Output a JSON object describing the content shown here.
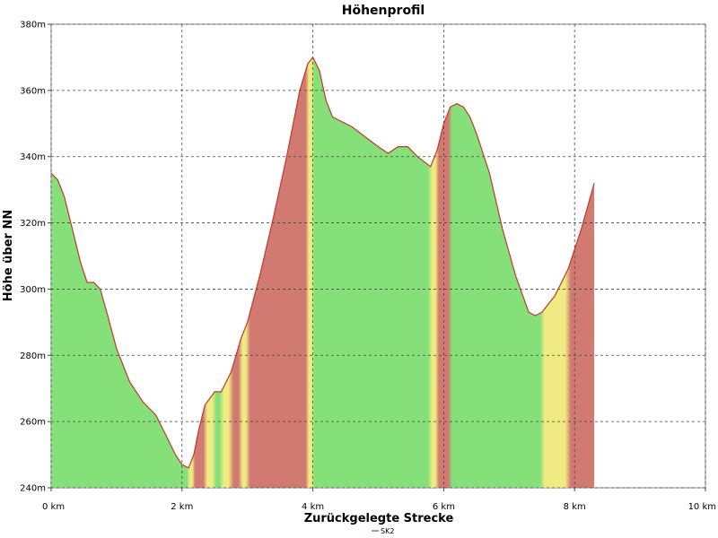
{
  "chart_data": {
    "type": "area",
    "title": "Höhenprofil",
    "xlabel": "Zurückgelegte Strecke",
    "ylabel": "Höhe über NN",
    "xlim": [
      0,
      10
    ],
    "ylim": [
      240,
      380
    ],
    "x_ticks": [
      0,
      2,
      4,
      6,
      8,
      10
    ],
    "x_tick_labels": [
      "0 km",
      "2 km",
      "4 km",
      "6 km",
      "8 km",
      "10 km"
    ],
    "y_ticks": [
      240,
      260,
      280,
      300,
      320,
      340,
      360,
      380
    ],
    "y_tick_labels": [
      "240m",
      "260m",
      "280m",
      "300m",
      "320m",
      "340m",
      "360m",
      "380m"
    ],
    "grid": true,
    "legend_position": "bottom",
    "colors": {
      "line": "#c0392b",
      "flat": "#86e07a",
      "moderate": "#f0ea82",
      "steep": "#d07a72",
      "grid": "#444444"
    },
    "series": [
      {
        "name": "SK2",
        "x": [
          0,
          0.1,
          0.2,
          0.3,
          0.45,
          0.55,
          0.65,
          0.75,
          0.85,
          1.0,
          1.2,
          1.4,
          1.6,
          1.75,
          1.9,
          2.0,
          2.1,
          2.18,
          2.25,
          2.35,
          2.5,
          2.6,
          2.75,
          2.9,
          3.0,
          3.2,
          3.4,
          3.6,
          3.8,
          3.92,
          4.0,
          4.1,
          4.2,
          4.3,
          4.4,
          4.6,
          4.8,
          5.0,
          5.15,
          5.3,
          5.45,
          5.6,
          5.8,
          5.9,
          6.0,
          6.1,
          6.2,
          6.3,
          6.4,
          6.5,
          6.7,
          6.9,
          7.1,
          7.3,
          7.4,
          7.5,
          7.7,
          7.9,
          8.1,
          8.3
        ],
        "y": [
          335,
          333,
          328,
          320,
          308,
          302,
          302,
          300,
          293,
          282,
          272,
          266,
          262,
          256,
          250,
          247,
          246,
          250,
          257,
          265,
          269,
          269,
          275,
          285,
          290,
          305,
          322,
          340,
          360,
          368,
          370,
          366,
          357,
          352,
          351,
          349,
          346,
          343,
          341,
          343,
          343,
          340,
          337,
          342,
          350,
          355,
          356,
          355,
          352,
          347,
          335,
          318,
          304,
          293,
          292,
          293,
          298,
          306,
          318,
          332
        ]
      }
    ]
  }
}
